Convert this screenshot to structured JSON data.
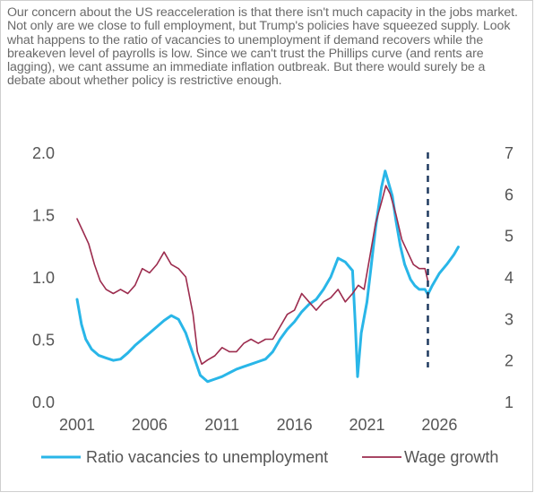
{
  "caption": "Our concern about the US reacceleration is that there isn't much capacity in the jobs market. Not only are we close to full employment, but Trump's policies have squeezed supply. Look what happens to the ratio of vacancies to unemployment if demand recovers while the breakeven level of payrolls is low. Since we can't trust the Phillips curve (and rents are lagging), we cant assume an immediate inflation outbreak. But there would surely be a debate about whether policy is restrictive enough.",
  "chart_data": {
    "type": "line",
    "xlim": [
      2001,
      2028
    ],
    "x_ticks": [
      2001,
      2006,
      2011,
      2016,
      2021,
      2026
    ],
    "x_tick_labels": [
      "2001",
      "2006",
      "2011",
      "2016",
      "2021",
      "2026"
    ],
    "y_left": {
      "lim": [
        0,
        2
      ],
      "ticks": [
        0,
        0.5,
        1,
        1.5,
        2
      ],
      "tick_labels": [
        "0.0",
        "0.5",
        "1.0",
        "1.5",
        "2.0"
      ]
    },
    "y_right": {
      "lim": [
        1,
        7
      ],
      "ticks": [
        1,
        2,
        3,
        4,
        5,
        6,
        7
      ],
      "tick_labels": [
        "1",
        "2",
        "3",
        "4",
        "5",
        "6",
        "7"
      ]
    },
    "grid": false,
    "legend_position": "bottom",
    "vertical_marker": {
      "x": 2025.2,
      "style": "dashed",
      "color": "#1f3a5f"
    },
    "series": [
      {
        "name": "Ratio vacancies to unemployment",
        "axis": "left",
        "color": "#29b6e8",
        "x": [
          2001.0,
          2001.3,
          2001.6,
          2002.0,
          2002.5,
          2003.0,
          2003.5,
          2004.0,
          2004.5,
          2005.0,
          2005.5,
          2006.0,
          2006.5,
          2007.0,
          2007.5,
          2008.0,
          2008.5,
          2009.0,
          2009.5,
          2010.0,
          2010.5,
          2011.0,
          2011.5,
          2012.0,
          2012.5,
          2013.0,
          2013.5,
          2014.0,
          2014.5,
          2015.0,
          2015.5,
          2016.0,
          2016.5,
          2017.0,
          2017.5,
          2018.0,
          2018.5,
          2019.0,
          2019.5,
          2020.0,
          2020.2,
          2020.35,
          2020.6,
          2021.0,
          2021.3,
          2021.6,
          2022.0,
          2022.25,
          2022.5,
          2022.75,
          2023.0,
          2023.3,
          2023.6,
          2024.0,
          2024.3,
          2024.6,
          2025.0,
          2025.2,
          2025.5,
          2026.0,
          2026.5,
          2027.0,
          2027.3
        ],
        "y": [
          0.82,
          0.62,
          0.5,
          0.42,
          0.37,
          0.35,
          0.33,
          0.34,
          0.39,
          0.45,
          0.5,
          0.55,
          0.6,
          0.65,
          0.69,
          0.66,
          0.55,
          0.38,
          0.21,
          0.16,
          0.18,
          0.2,
          0.23,
          0.26,
          0.28,
          0.3,
          0.32,
          0.34,
          0.4,
          0.5,
          0.58,
          0.64,
          0.72,
          0.78,
          0.82,
          0.9,
          1.0,
          1.15,
          1.12,
          1.05,
          0.6,
          0.2,
          0.55,
          0.8,
          1.1,
          1.4,
          1.72,
          1.85,
          1.75,
          1.65,
          1.45,
          1.25,
          1.1,
          0.98,
          0.93,
          0.9,
          0.9,
          0.86,
          0.93,
          1.03,
          1.1,
          1.18,
          1.24
        ]
      },
      {
        "name": "Wage growth",
        "axis": "right",
        "color": "#9c2c4e",
        "x": [
          2001.0,
          2001.4,
          2001.8,
          2002.2,
          2002.6,
          2003.0,
          2003.5,
          2004.0,
          2004.5,
          2005.0,
          2005.5,
          2006.0,
          2006.5,
          2007.0,
          2007.5,
          2008.0,
          2008.5,
          2009.0,
          2009.3,
          2009.6,
          2010.0,
          2010.5,
          2011.0,
          2011.5,
          2012.0,
          2012.5,
          2013.0,
          2013.5,
          2014.0,
          2014.5,
          2015.0,
          2015.5,
          2016.0,
          2016.5,
          2017.0,
          2017.5,
          2018.0,
          2018.5,
          2019.0,
          2019.5,
          2020.0,
          2020.4,
          2020.8,
          2021.2,
          2021.6,
          2022.0,
          2022.3,
          2022.6,
          2023.0,
          2023.4,
          2023.8,
          2024.2,
          2024.6,
          2025.0,
          2025.2
        ],
        "y": [
          5.4,
          5.1,
          4.8,
          4.3,
          3.9,
          3.7,
          3.6,
          3.7,
          3.6,
          3.8,
          4.2,
          4.1,
          4.3,
          4.6,
          4.3,
          4.2,
          4.0,
          3.1,
          2.2,
          1.9,
          2.0,
          2.1,
          2.3,
          2.2,
          2.2,
          2.4,
          2.5,
          2.4,
          2.5,
          2.5,
          2.8,
          3.1,
          3.2,
          3.6,
          3.4,
          3.2,
          3.4,
          3.5,
          3.7,
          3.4,
          3.6,
          3.8,
          3.7,
          4.5,
          5.3,
          5.8,
          6.2,
          6.0,
          5.5,
          4.9,
          4.6,
          4.3,
          4.2,
          4.2,
          3.9
        ]
      }
    ]
  }
}
